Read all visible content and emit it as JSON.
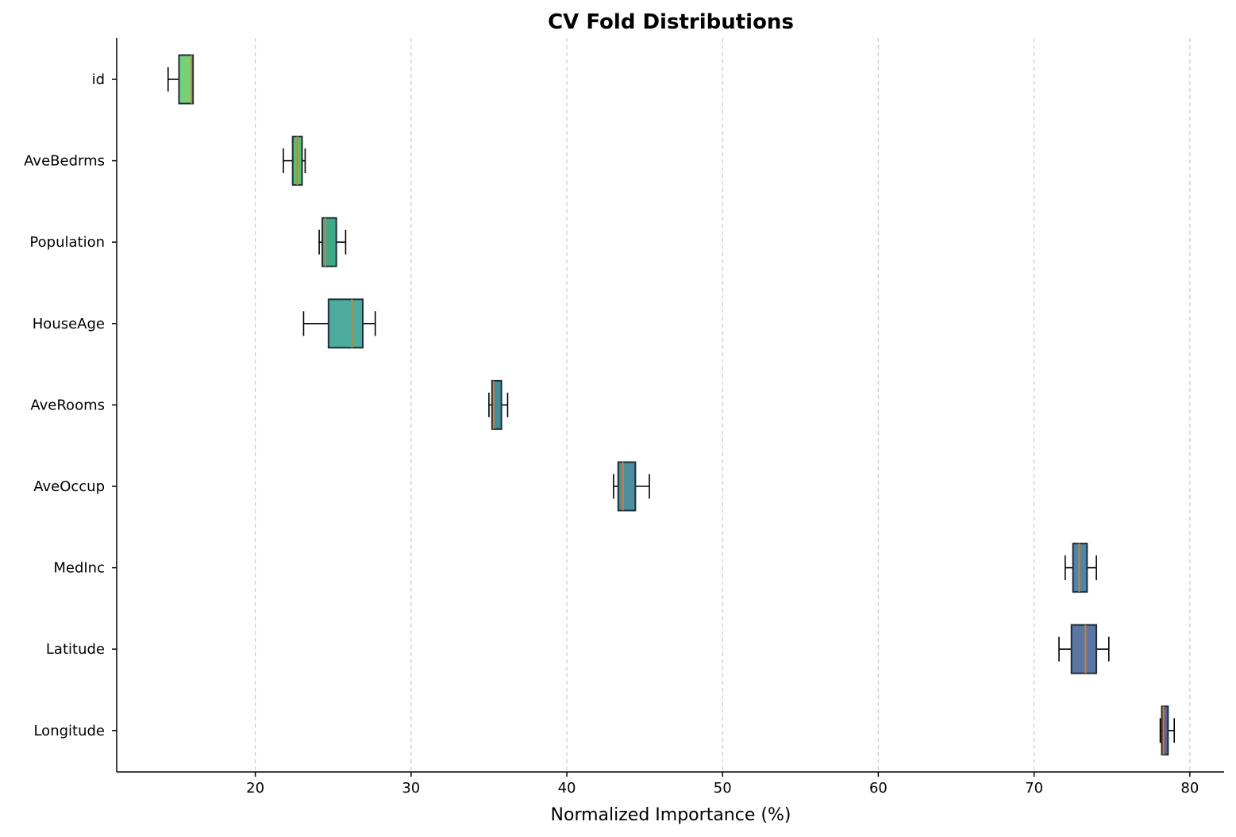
{
  "chart_data": {
    "type": "box",
    "orientation": "horizontal",
    "title": "CV Fold Distributions",
    "xlabel": "Normalized Importance (%)",
    "ylabel": "",
    "xlim": [
      11.1,
      82.2
    ],
    "xticks": [
      20,
      30,
      40,
      50,
      60,
      70,
      80
    ],
    "grid": "x-dashed",
    "median_color": "#e07b1f",
    "series": [
      {
        "name": "id",
        "whislo": 14.4,
        "q1": 15.1,
        "median": 15.9,
        "q3": 16.0,
        "whishi": 16.0,
        "color": "#78d07a"
      },
      {
        "name": "AveBedrms",
        "whislo": 21.8,
        "q1": 22.4,
        "median": 22.7,
        "q3": 23.0,
        "whishi": 23.2,
        "color": "#55c073"
      },
      {
        "name": "Population",
        "whislo": 24.1,
        "q1": 24.3,
        "median": 24.5,
        "q3": 25.2,
        "whishi": 25.8,
        "color": "#3ea989"
      },
      {
        "name": "HouseAge",
        "whislo": 23.1,
        "q1": 24.7,
        "median": 26.2,
        "q3": 26.9,
        "whishi": 27.7,
        "color": "#4aab9e"
      },
      {
        "name": "AveRooms",
        "whislo": 35.0,
        "q1": 35.2,
        "median": 35.3,
        "q3": 35.8,
        "whishi": 36.2,
        "color": "#3e8e9b"
      },
      {
        "name": "AveOccup",
        "whislo": 43.0,
        "q1": 43.3,
        "median": 43.6,
        "q3": 44.4,
        "whishi": 45.3,
        "color": "#4b8ea0"
      },
      {
        "name": "MedInc",
        "whislo": 72.0,
        "q1": 72.5,
        "median": 72.9,
        "q3": 73.4,
        "whishi": 74.0,
        "color": "#4f85a8"
      },
      {
        "name": "Latitude",
        "whislo": 71.6,
        "q1": 72.4,
        "median": 73.3,
        "q3": 74.0,
        "whishi": 74.8,
        "color": "#5a77a3"
      },
      {
        "name": "Longitude",
        "whislo": 78.1,
        "q1": 78.2,
        "median": 78.3,
        "q3": 78.6,
        "whishi": 79.0,
        "color": "#5b6295"
      }
    ]
  }
}
